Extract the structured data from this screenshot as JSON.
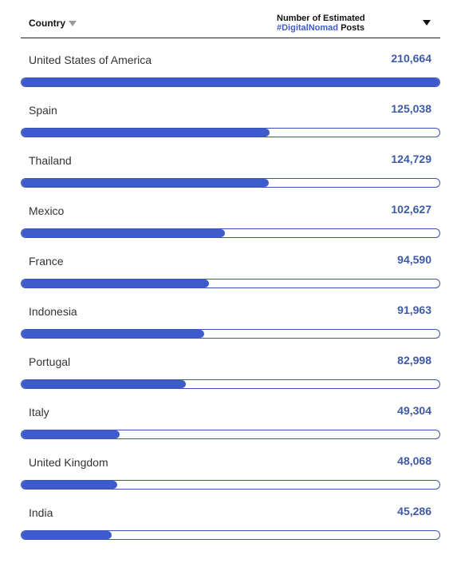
{
  "header": {
    "country_label": "Country",
    "value_label_line1": "Number of Estimated",
    "value_label_hashtag": "#DigitalNomad",
    "value_label_posts": " Posts"
  },
  "colors": {
    "bar_fill": "#3d5bcc",
    "bar_border": "#3a54b4",
    "value_text": "#3d5aa8",
    "hashtag": "#3e5bd0"
  },
  "chart_data": {
    "type": "bar",
    "orientation": "horizontal",
    "xlabel": "Country",
    "ylabel": "Number of Estimated #DigitalNomad Posts",
    "sort": "descending",
    "max": 210664,
    "categories": [
      "United States of America",
      "Spain",
      "Thailand",
      "Mexico",
      "France",
      "Indonesia",
      "Portugal",
      "Italy",
      "United Kingdom",
      "India"
    ],
    "values": [
      210664,
      125038,
      124729,
      102627,
      94590,
      91963,
      82998,
      49304,
      48068,
      45286
    ],
    "labels": [
      "210,664",
      "125,038",
      "124,729",
      "102,627",
      "94,590",
      "91,963",
      "82,998",
      "49,304",
      "48,068",
      "45,286"
    ]
  }
}
